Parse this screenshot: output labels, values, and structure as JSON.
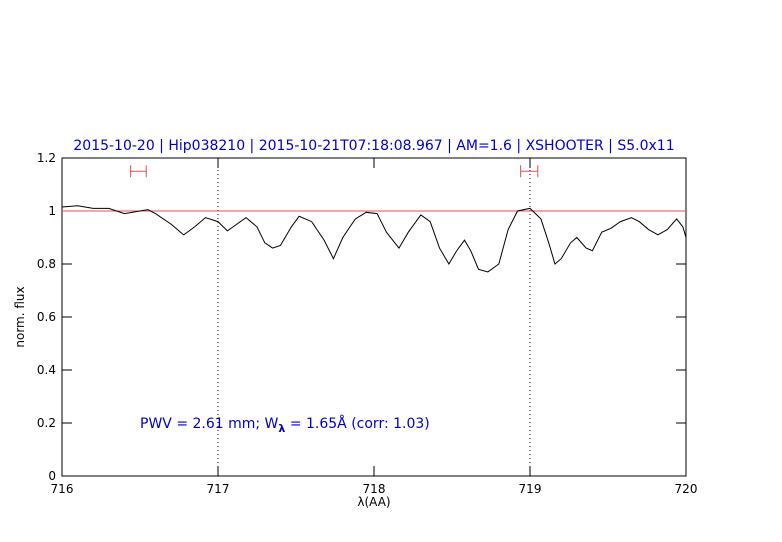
{
  "chart_data": {
    "type": "line",
    "title": "2015-10-20 | Hip038210 | 2015-10-21T07:18:08.967 | AM=1.6 | XSHOOTER | S5.0x11",
    "x_label": "λ(AA)",
    "y_label": "norm. flux",
    "annotation": {
      "text": "PWV = 2.61 mm; W",
      "subscript": "λ",
      "rest": " = 1.65Å (corr: 1.03)"
    },
    "xlim": [
      716,
      720
    ],
    "xticks": [
      716,
      717,
      718,
      719,
      720
    ],
    "ylim": [
      0,
      1.2
    ],
    "yticks": [
      0,
      0.2,
      0.4,
      0.6,
      0.8,
      1,
      1.2
    ],
    "reference_line": {
      "y": 1,
      "color": "#e05050"
    },
    "dotted_lines": [
      717,
      719
    ],
    "markers": [
      {
        "x": [
          716.44,
          716.54
        ],
        "y": 1.15
      },
      {
        "x": [
          718.94,
          719.05
        ],
        "y": 1.15
      }
    ],
    "marker_color": "#e05050",
    "series": [
      {
        "color": "#000000",
        "x": [
          716.0,
          716.1,
          716.2,
          716.3,
          716.4,
          716.5,
          716.55,
          716.6,
          716.7,
          716.78,
          716.85,
          716.92,
          717.0,
          717.06,
          717.12,
          717.18,
          717.25,
          717.3,
          717.35,
          717.4,
          717.47,
          717.52,
          717.6,
          717.68,
          717.74,
          717.8,
          717.88,
          717.95,
          718.02,
          718.08,
          718.16,
          718.22,
          718.3,
          718.36,
          718.42,
          718.48,
          718.53,
          718.58,
          718.62,
          718.67,
          718.73,
          718.8,
          718.86,
          718.92,
          719.0,
          719.07,
          719.12,
          719.16,
          719.2,
          719.26,
          719.3,
          719.36,
          719.4,
          719.46,
          719.52,
          719.58,
          719.65,
          719.7,
          719.76,
          719.82,
          719.88,
          719.94,
          719.98,
          720.0
        ],
        "values": [
          1.015,
          1.02,
          1.01,
          1.01,
          0.99,
          1.0,
          1.005,
          0.99,
          0.95,
          0.91,
          0.94,
          0.975,
          0.96,
          0.925,
          0.95,
          0.975,
          0.94,
          0.88,
          0.86,
          0.87,
          0.94,
          0.98,
          0.96,
          0.89,
          0.82,
          0.9,
          0.97,
          0.995,
          0.99,
          0.92,
          0.86,
          0.92,
          0.985,
          0.96,
          0.86,
          0.8,
          0.85,
          0.89,
          0.85,
          0.78,
          0.77,
          0.8,
          0.93,
          1.0,
          1.01,
          0.97,
          0.88,
          0.8,
          0.82,
          0.88,
          0.9,
          0.86,
          0.85,
          0.92,
          0.935,
          0.96,
          0.975,
          0.96,
          0.93,
          0.91,
          0.93,
          0.97,
          0.94,
          0.9
        ]
      }
    ]
  }
}
